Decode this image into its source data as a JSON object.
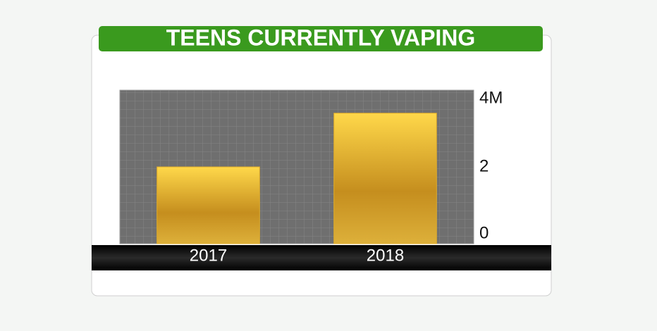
{
  "chart_data": {
    "type": "bar",
    "title": "TEENS CURRENTLY VAPING",
    "categories": [
      "2017",
      "2018"
    ],
    "values": [
      2.0,
      3.4
    ],
    "color": "#e0ac2a",
    "ylim": [
      0,
      4
    ],
    "yticks": [
      0,
      2,
      {
        "value": 4,
        "label": "4M"
      }
    ]
  }
}
